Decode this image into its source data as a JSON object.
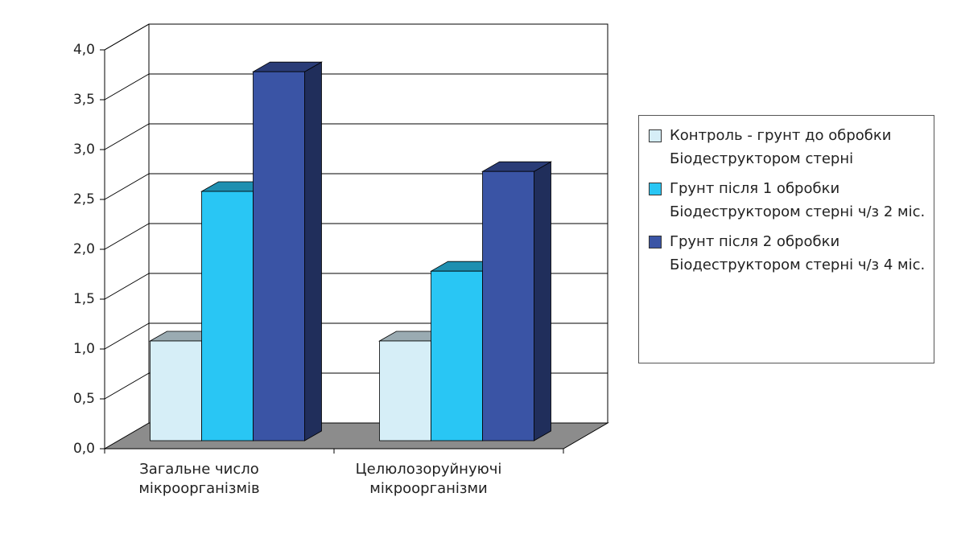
{
  "chart_data": {
    "type": "bar3d",
    "categories": [
      "Загальне число мікроорганізмів",
      "Целюлозоруйнуючі мікроорганізми"
    ],
    "series": [
      {
        "name": "Контроль - грунт до обробки Біодеструктором стерні",
        "color": "#d6eef7",
        "values": [
          1.0,
          1.0
        ]
      },
      {
        "name": "Грунт після 1 обробки Біодеструктором стерні ч/з 2 міс.",
        "color": "#29c6f4",
        "values": [
          2.5,
          1.7
        ]
      },
      {
        "name": "Грунт після 2 обробки Біодеструктором стерні ч/з 4 міс.",
        "color": "#3a54a5",
        "values": [
          3.7,
          2.7
        ]
      }
    ],
    "ylim": [
      0,
      4
    ],
    "yticks": [
      {
        "value": 0,
        "label": "0,0"
      },
      {
        "value": 0.5,
        "label": "0,5"
      },
      {
        "value": 1,
        "label": "1,0"
      },
      {
        "value": 1.5,
        "label": "1,5"
      },
      {
        "value": 2,
        "label": "2,0"
      },
      {
        "value": 2.5,
        "label": "2,5"
      },
      {
        "value": 3,
        "label": "3,0"
      },
      {
        "value": 3.5,
        "label": "3,5"
      },
      {
        "value": 4,
        "label": "4,0"
      }
    ],
    "grid": true,
    "legend": "right"
  }
}
